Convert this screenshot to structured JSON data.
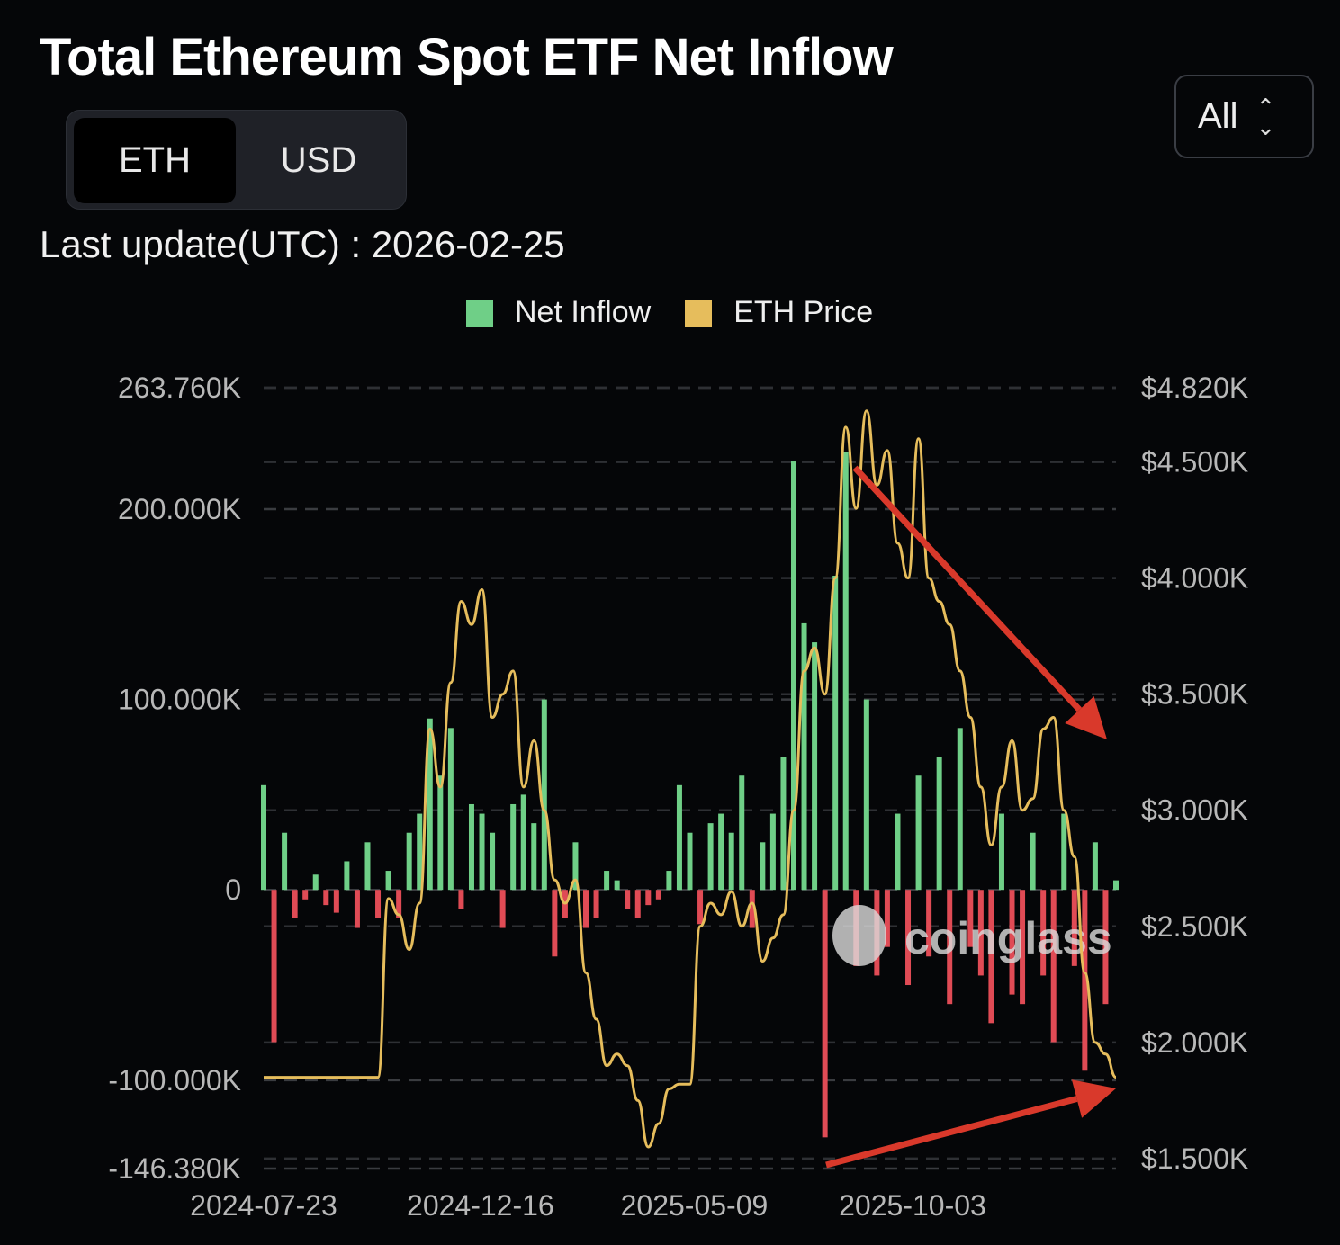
{
  "header": {
    "title": "Total Ethereum Spot ETF Net Inflow"
  },
  "unit_toggle": {
    "options": [
      "ETH",
      "USD"
    ],
    "selected": "ETH"
  },
  "range_select": {
    "value": "All"
  },
  "last_update": "Last update(UTC) : 2026-02-25",
  "watermark": "coinglass",
  "colors": {
    "positive": "#6fcf87",
    "negative": "#e04b55",
    "price": "#e6bd5c",
    "arrow": "#d9392b",
    "background": "#050608"
  },
  "chart_data": {
    "type": "bar+line",
    "legend": {
      "position": "top-center",
      "entries": [
        "Net Inflow",
        "ETH Price"
      ]
    },
    "grid": true,
    "x_ticks": [
      "2024-07-23",
      "2024-12-16",
      "2025-05-09",
      "2025-10-03"
    ],
    "left_axis": {
      "ticks": [
        "263.760K",
        "200.000K",
        "100.000K",
        "0",
        "-100.000K",
        "-146.380K"
      ],
      "tick_values": [
        263.76,
        200,
        100,
        0,
        -100,
        -146.38
      ],
      "ylim": [
        -146.38,
        263.76
      ],
      "unit": "K ETH"
    },
    "right_axis": {
      "ticks": [
        "$4.820K",
        "$4.500K",
        "$4.000K",
        "$3.500K",
        "$3.000K",
        "$2.500K",
        "$2.000K",
        "$1.500K"
      ],
      "tick_values": [
        4820,
        4500,
        4000,
        3500,
        3000,
        2500,
        2000,
        1500
      ],
      "ylim": [
        1457,
        4820
      ],
      "unit": "USD"
    },
    "x": [
      "2024-07-23",
      "2024-07-30",
      "2024-08-06",
      "2024-08-13",
      "2024-08-20",
      "2024-08-27",
      "2024-09-03",
      "2024-09-10",
      "2024-09-17",
      "2024-09-24",
      "2024-10-01",
      "2024-10-08",
      "2024-10-15",
      "2024-10-22",
      "2024-10-29",
      "2024-11-05",
      "2024-11-12",
      "2024-11-19",
      "2024-11-26",
      "2024-12-03",
      "2024-12-10",
      "2024-12-17",
      "2024-12-24",
      "2024-12-31",
      "2025-01-07",
      "2025-01-14",
      "2025-01-21",
      "2025-01-28",
      "2025-02-04",
      "2025-02-11",
      "2025-02-18",
      "2025-02-25",
      "2025-03-04",
      "2025-03-11",
      "2025-03-18",
      "2025-03-25",
      "2025-04-01",
      "2025-04-08",
      "2025-04-15",
      "2025-04-22",
      "2025-04-29",
      "2025-05-06",
      "2025-05-13",
      "2025-05-20",
      "2025-05-27",
      "2025-06-03",
      "2025-06-10",
      "2025-06-17",
      "2025-06-24",
      "2025-07-01",
      "2025-07-08",
      "2025-07-15",
      "2025-07-22",
      "2025-07-29",
      "2025-08-05",
      "2025-08-12",
      "2025-08-19",
      "2025-08-26",
      "2025-09-02",
      "2025-09-09",
      "2025-09-16",
      "2025-09-23",
      "2025-09-30",
      "2025-10-07",
      "2025-10-14",
      "2025-10-21",
      "2025-10-28",
      "2025-11-04",
      "2025-11-11",
      "2025-11-18",
      "2025-11-25",
      "2025-12-02",
      "2025-12-09",
      "2025-12-16",
      "2025-12-23",
      "2025-12-30",
      "2026-01-06",
      "2026-01-13",
      "2026-01-20",
      "2026-01-27",
      "2026-02-03",
      "2026-02-10",
      "2026-02-17"
    ],
    "series": [
      {
        "name": "Net Inflow",
        "axis": "left",
        "type": "bar",
        "values": [
          55,
          -80,
          30,
          -15,
          -5,
          8,
          -8,
          -12,
          15,
          -20,
          25,
          -15,
          10,
          -15,
          30,
          40,
          90,
          60,
          85,
          -10,
          45,
          40,
          30,
          -20,
          45,
          50,
          35,
          100,
          -35,
          -15,
          25,
          -20,
          -15,
          10,
          5,
          -10,
          -15,
          -8,
          -5,
          10,
          55,
          30,
          -18,
          35,
          40,
          30,
          60,
          -20,
          25,
          40,
          70,
          225,
          140,
          130,
          -130,
          165,
          230,
          -40,
          100,
          -45,
          -30,
          40,
          -50,
          60,
          -35,
          70,
          -60,
          85,
          -30,
          -45,
          -70,
          40,
          -55,
          -60,
          30,
          -45,
          -80,
          40,
          -40,
          -95,
          25,
          -60,
          5
        ]
      },
      {
        "name": "ETH Price",
        "axis": "right",
        "type": "line",
        "values": [
          1850,
          1850,
          1850,
          1850,
          1850,
          1850,
          1850,
          1850,
          1850,
          1850,
          1850,
          1850,
          2620,
          2550,
          2400,
          2600,
          3350,
          3100,
          3550,
          3900,
          3800,
          3950,
          3400,
          3500,
          3600,
          3100,
          3300,
          3000,
          2700,
          2600,
          2700,
          2300,
          2100,
          1900,
          1950,
          1900,
          1750,
          1550,
          1650,
          1800,
          1820,
          1820,
          2500,
          2600,
          2550,
          2650,
          2500,
          2600,
          2350,
          2450,
          2550,
          3000,
          3600,
          3700,
          3500,
          4000,
          4650,
          4300,
          4720,
          4400,
          4550,
          4150,
          4000,
          4600,
          4000,
          3900,
          3800,
          3600,
          3400,
          3100,
          2850,
          3100,
          3300,
          3000,
          3050,
          3350,
          3400,
          3000,
          2800,
          2300,
          2000,
          1950,
          1850
        ]
      }
    ]
  }
}
